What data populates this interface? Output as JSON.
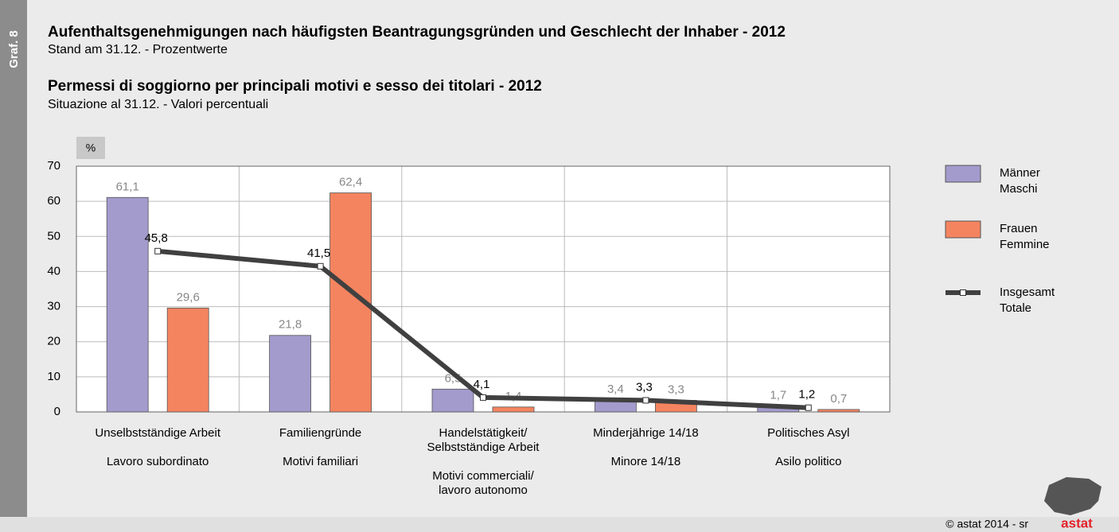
{
  "chart_data": {
    "type": "bar",
    "figure_label": "Graf. 8",
    "title": "Aufenthaltsgenehmigungen nach häufigsten Beantragungsgründen und Geschlecht der Inhaber - 2012",
    "subtitle": "Stand am 31.12. - Prozentwerte",
    "title_it": "Permessi di soggiorno per principali motivi e sesso dei titolari - 2012",
    "subtitle_it": "Situazione al 31.12. - Valori percentuali",
    "y_unit": "%",
    "categories": [
      [
        "Unselbstständige Arbeit"
      ],
      [
        "Familiengründe"
      ],
      [
        "Handelstätigkeit/",
        "Selbstständige Arbeit"
      ],
      [
        "Minderjährige 14/18"
      ],
      [
        "Politisches Asyl"
      ]
    ],
    "categories_it": [
      [
        "Lavoro subordinato"
      ],
      [
        "Motivi familiari"
      ],
      [
        "Motivi commerciali/",
        "lavoro autonomo"
      ],
      [
        "Minore 14/18"
      ],
      [
        "Asilo politico"
      ]
    ],
    "series": [
      {
        "name": "Männer",
        "name_it": "Maschi",
        "type": "bar",
        "color": "#a29bcc",
        "values": [
          61.1,
          21.8,
          6.5,
          3.4,
          1.7
        ],
        "value_labels": [
          "61,1",
          "21,8",
          "6,5",
          "3,4",
          "1,7"
        ]
      },
      {
        "name": "Frauen",
        "name_it": "Femmine",
        "type": "bar",
        "color": "#f4845f",
        "values": [
          29.6,
          62.4,
          1.4,
          3.3,
          0.7
        ],
        "value_labels": [
          "29,6",
          "62,4",
          "1,4",
          "3,3",
          "0,7"
        ]
      },
      {
        "name": "Insgesamt",
        "name_it": "Totale",
        "type": "line",
        "color": "#404040",
        "values": [
          45.8,
          41.5,
          4.1,
          3.3,
          1.2
        ],
        "value_labels": [
          "45,8",
          "41,5",
          "4,1",
          "3,3",
          "1,2"
        ]
      }
    ],
    "ylim": [
      0,
      70
    ],
    "yticks": [
      0,
      10,
      20,
      30,
      40,
      50,
      60,
      70
    ],
    "grid": true,
    "legend": "right",
    "source": "© astat 2014 - sr",
    "logo": "astat"
  }
}
